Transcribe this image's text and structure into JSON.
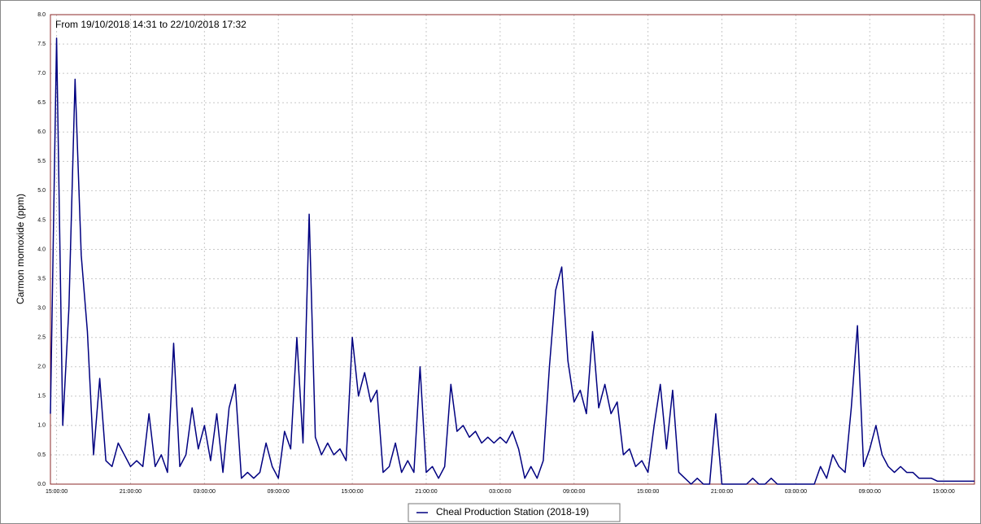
{
  "chart_data": {
    "type": "line",
    "subtitle": "From 19/10/2018 14:31 to 22/10/2018 17:32",
    "y_label": "Carmon momoxide (ppm)",
    "x": [
      14.5,
      15,
      15.5,
      16,
      16.5,
      17,
      17.5,
      18,
      18.5,
      19,
      19.5,
      20,
      20.5,
      21,
      21.5,
      22,
      22.5,
      23,
      23.5,
      24,
      24.5,
      25,
      25.5,
      26,
      26.5,
      27,
      27.5,
      28,
      28.5,
      29,
      29.5,
      30,
      30.5,
      31,
      31.5,
      32,
      32.5,
      33,
      33.5,
      34,
      34.5,
      35,
      35.5,
      36,
      36.5,
      37,
      37.5,
      38,
      38.5,
      39,
      39.5,
      40,
      40.5,
      41,
      41.5,
      42,
      42.5,
      43,
      43.5,
      44,
      44.5,
      45,
      45.5,
      46,
      46.5,
      47,
      47.5,
      48,
      48.5,
      49,
      49.5,
      50,
      50.5,
      51,
      51.5,
      52,
      52.5,
      53,
      53.5,
      54,
      54.5,
      55,
      55.5,
      56,
      56.5,
      57,
      57.5,
      58,
      58.5,
      59,
      59.5,
      60,
      60.5,
      61,
      61.5,
      62,
      62.5,
      63,
      63.5,
      64,
      64.5,
      65,
      65.5,
      66,
      66.5,
      67,
      67.5,
      68,
      68.5,
      69,
      69.5,
      70,
      70.5,
      71,
      71.5,
      72,
      72.5,
      73,
      73.5,
      74,
      74.5,
      75,
      75.5,
      76,
      76.5,
      77,
      77.5,
      78,
      78.5,
      79,
      79.5,
      80,
      80.5,
      81,
      81.5,
      82,
      82.5,
      83,
      83.5,
      84,
      84.5,
      85,
      85.5,
      86,
      86.5,
      87,
      87.5,
      88,
      88.5,
      89,
      89.5
    ],
    "series": [
      {
        "name": "Cheal Production Station (2018-19)",
        "color": "#000080",
        "values": [
          1.2,
          7.6,
          1.0,
          3.0,
          6.9,
          3.9,
          2.6,
          0.5,
          1.8,
          0.4,
          0.3,
          0.7,
          0.5,
          0.3,
          0.4,
          0.3,
          1.2,
          0.3,
          0.5,
          0.2,
          2.4,
          0.3,
          0.5,
          1.3,
          0.6,
          1.0,
          0.4,
          1.2,
          0.2,
          1.3,
          1.7,
          0.1,
          0.2,
          0.1,
          0.2,
          0.7,
          0.3,
          0.1,
          0.9,
          0.6,
          2.5,
          0.7,
          4.6,
          0.8,
          0.5,
          0.7,
          0.5,
          0.6,
          0.4,
          2.5,
          1.5,
          1.9,
          1.4,
          1.6,
          0.2,
          0.3,
          0.7,
          0.2,
          0.4,
          0.2,
          2.0,
          0.2,
          0.3,
          0.1,
          0.3,
          1.7,
          0.9,
          1.0,
          0.8,
          0.9,
          0.7,
          0.8,
          0.7,
          0.8,
          0.7,
          0.9,
          0.6,
          0.1,
          0.3,
          0.1,
          0.4,
          2.0,
          3.3,
          3.7,
          2.1,
          1.4,
          1.6,
          1.2,
          2.6,
          1.3,
          1.7,
          1.2,
          1.4,
          0.5,
          0.6,
          0.3,
          0.4,
          0.2,
          1.0,
          1.7,
          0.6,
          1.6,
          0.2,
          0.1,
          0,
          0.1,
          0,
          0,
          1.2,
          0,
          0,
          0,
          0,
          0,
          0.1,
          0,
          0,
          0.1,
          0,
          0,
          0,
          0,
          0,
          0,
          0,
          0.3,
          0.1,
          0.5,
          0.3,
          0.2,
          1.3,
          2.7,
          0.3,
          0.6,
          1.0,
          0.5,
          0.3,
          0.2,
          0.3,
          0.2,
          0.2,
          0.1,
          0.1,
          0.1,
          0.05,
          0.05,
          0.05,
          0.05,
          0.05,
          0.05,
          0.05
        ]
      }
    ],
    "xlim": [
      14.5,
      89.5
    ],
    "xticks": [
      {
        "value": 15,
        "label": "15:00:00"
      },
      {
        "value": 21,
        "label": "21:00:00"
      },
      {
        "value": 27,
        "label": "03:00:00"
      },
      {
        "value": 33,
        "label": "09:00:00"
      },
      {
        "value": 39,
        "label": "15:00:00"
      },
      {
        "value": 45,
        "label": "21:00:00"
      },
      {
        "value": 51,
        "label": "03:00:00"
      },
      {
        "value": 57,
        "label": "09:00:00"
      },
      {
        "value": 63,
        "label": "15:00:00"
      },
      {
        "value": 69,
        "label": "21:00:00"
      },
      {
        "value": 75,
        "label": "03:00:00"
      },
      {
        "value": 81,
        "label": "09:00:00"
      },
      {
        "value": 87,
        "label": "15:00:00"
      }
    ],
    "ylim": [
      0,
      8
    ],
    "yticks": [
      {
        "value": 0,
        "label": "0.0"
      },
      0.5,
      {
        "value": 1,
        "label": "1.0"
      },
      1.5,
      {
        "value": 2,
        "label": "2.0"
      },
      2.5,
      {
        "value": 3,
        "label": "3.0"
      },
      3.5,
      {
        "value": 4,
        "label": "4.0"
      },
      4.5,
      {
        "value": 5,
        "label": "5.0"
      },
      5.5,
      {
        "value": 6,
        "label": "6.0"
      },
      6.5,
      {
        "value": 7,
        "label": "7.0"
      },
      7.5,
      {
        "value": 8,
        "label": "8.0"
      }
    ],
    "grid": true
  }
}
